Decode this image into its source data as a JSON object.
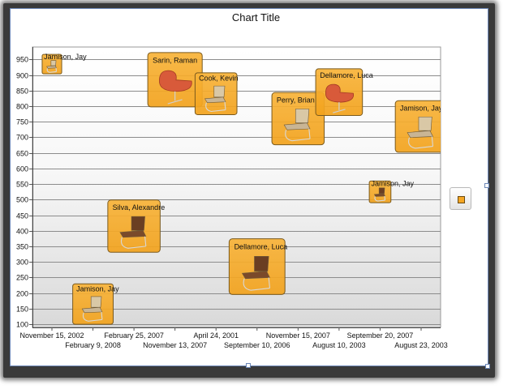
{
  "chart_data": {
    "type": "scatter",
    "title": "Chart Title",
    "xlabel": "",
    "ylabel": "",
    "ylim": [
      90,
      990
    ],
    "grid": true,
    "legend_placement": "right",
    "y_ticks": [
      100,
      150,
      200,
      250,
      300,
      350,
      400,
      450,
      500,
      550,
      600,
      650,
      700,
      750,
      800,
      850,
      900,
      950
    ],
    "x_tick_labels": [
      "November 15, 2002",
      "February 9, 2008",
      "February 25, 2007",
      "November 13, 2007",
      "April 24, 2001",
      "September 10, 2006",
      "November 15, 2007",
      "August 10, 2003",
      "September 20, 2007",
      "August 23, 2003"
    ],
    "bubble_color": "#f5a623",
    "series": [
      {
        "points": [
          {
            "category": 0,
            "y": 935,
            "size": 0.28,
            "label": "Jamison, Jay",
            "chair": "tan"
          },
          {
            "category": 1,
            "y": 165,
            "size": 0.58,
            "label": "Jamison, Jay",
            "chair": "tan"
          },
          {
            "category": 2,
            "y": 415,
            "size": 0.75,
            "label": "Silva, Alexandre",
            "chair": "brown"
          },
          {
            "category": 3,
            "y": 885,
            "size": 0.78,
            "label": "Sarin, Raman",
            "chair": "red"
          },
          {
            "category": 4,
            "y": 840,
            "size": 0.6,
            "label": "Cook, Kevin",
            "chair": "tan"
          },
          {
            "category": 5,
            "y": 285,
            "size": 0.8,
            "label": "Dellamore, Luca",
            "chair": "brown"
          },
          {
            "category": 6,
            "y": 760,
            "size": 0.75,
            "label": "Perry, Brian",
            "chair": "tan"
          },
          {
            "category": 7,
            "y": 845,
            "size": 0.67,
            "label": "Dellamore, Luca",
            "chair": "red"
          },
          {
            "category": 8,
            "y": 525,
            "size": 0.31,
            "label": "Jamison, Jay",
            "chair": "brown"
          },
          {
            "category": 9,
            "y": 735,
            "size": 0.74,
            "label": "Jamison, Jay",
            "chair": "tan"
          }
        ]
      }
    ]
  }
}
